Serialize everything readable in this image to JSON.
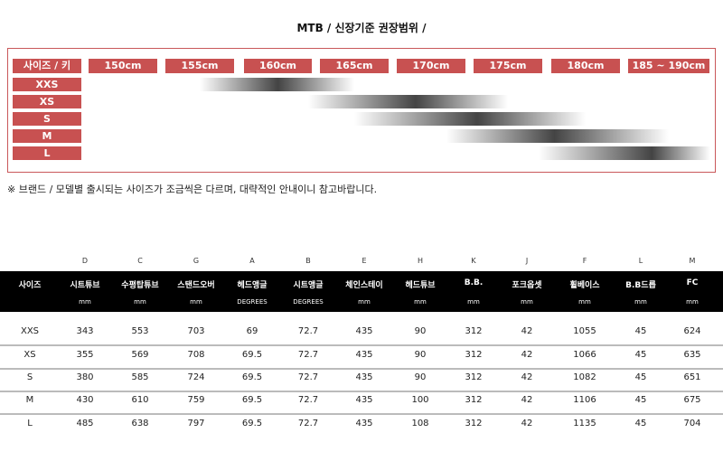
{
  "title": "MTB / 신장기준 권장범위 /",
  "size_chart": {
    "corner_label": "사이즈 / 키",
    "heights": [
      "150cm",
      "155cm",
      "160cm",
      "165cm",
      "170cm",
      "175cm",
      "180cm",
      "185 ~ 190cm"
    ],
    "sizes": [
      {
        "label": "XXS",
        "range_cm": [
          155,
          165
        ],
        "peak_cm": 160
      },
      {
        "label": "XS",
        "range_cm": [
          162,
          175
        ],
        "peak_cm": 169
      },
      {
        "label": "S",
        "range_cm": [
          165,
          180
        ],
        "peak_cm": 173
      },
      {
        "label": "M",
        "range_cm": [
          171,
          185
        ],
        "peak_cm": 178
      },
      {
        "label": "L",
        "range_cm": [
          177,
          190
        ],
        "peak_cm": 184
      }
    ],
    "accent_color": "#c85151"
  },
  "note": "※ 브랜드 / 모델별 출시되는 사이즈가 조금씩은 다르며, 대략적인 안내이니 참고바랍니다.",
  "geometry_table": {
    "letters": [
      "",
      "D",
      "C",
      "G",
      "A",
      "B",
      "E",
      "H",
      "K",
      "J",
      "F",
      "L",
      "M"
    ],
    "headers": [
      "사이즈",
      "시트튜브",
      "수평탑튜브",
      "스탠드오버",
      "헤드앵글",
      "시트앵글",
      "체인스테이",
      "헤드튜브",
      "B.B.",
      "포크옵셋",
      "휠베이스",
      "B.B드롭",
      "FC"
    ],
    "units": [
      "",
      "mm",
      "mm",
      "mm",
      "DEGREES",
      "DEGREES",
      "mm",
      "mm",
      "mm",
      "mm",
      "mm",
      "mm",
      "mm"
    ],
    "rows": [
      [
        "XXS",
        "343",
        "553",
        "703",
        "69",
        "72.7",
        "435",
        "90",
        "312",
        "42",
        "1055",
        "45",
        "624"
      ],
      [
        "XS",
        "355",
        "569",
        "708",
        "69.5",
        "72.7",
        "435",
        "90",
        "312",
        "42",
        "1066",
        "45",
        "635"
      ],
      [
        "S",
        "380",
        "585",
        "724",
        "69.5",
        "72.7",
        "435",
        "90",
        "312",
        "42",
        "1082",
        "45",
        "651"
      ],
      [
        "M",
        "430",
        "610",
        "759",
        "69.5",
        "72.7",
        "435",
        "100",
        "312",
        "42",
        "1106",
        "45",
        "675"
      ],
      [
        "L",
        "485",
        "638",
        "797",
        "69.5",
        "72.7",
        "435",
        "108",
        "312",
        "42",
        "1135",
        "45",
        "704"
      ]
    ]
  }
}
